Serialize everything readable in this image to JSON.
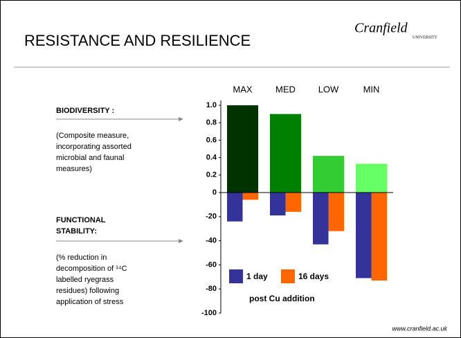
{
  "slide": {
    "title": "RESISTANCE AND RESILIENCE",
    "logo": "Cranfield",
    "logo_sub": "UNIVERSITY",
    "footer": "www.cranfield.ac.uk"
  },
  "left_panel": {
    "biodiversity_heading": "BIODIVERSITY :",
    "biodiversity_text": [
      "(Composite measure,",
      "incorporating assorted",
      "microbial and faunal",
      "measures)"
    ],
    "stability_heading": [
      "FUNCTIONAL",
      "STABILITY:"
    ],
    "stability_text": [
      "(% reduction in",
      "decomposition of ¹⁴C",
      "labelled ryegrass",
      "residues) following",
      "application of stress"
    ]
  },
  "chart_data": [
    {
      "type": "bar",
      "categories": [
        "MAX",
        "MED",
        "LOW",
        "MIN"
      ],
      "values": [
        1.0,
        0.9,
        0.42,
        0.33
      ],
      "colors": [
        "#003300",
        "#008000",
        "#33cc33",
        "#66ff66"
      ],
      "ylim": [
        0,
        1.0
      ],
      "yticks": [
        0,
        0.2,
        0.4,
        0.6,
        0.8,
        {
          "value": 1,
          "label": "1.0"
        }
      ]
    },
    {
      "type": "grouped_bar",
      "series": [
        {
          "name": "1 day",
          "color": "#333399",
          "values": [
            -24,
            -19,
            -43,
            -71
          ]
        },
        {
          "name": "16 days",
          "color": "#ff6600",
          "values": [
            -6,
            -16,
            -32,
            -73
          ]
        }
      ],
      "ylim": [
        -100,
        0
      ],
      "yticks": [
        -100,
        -80,
        -60,
        -40,
        -20
      ],
      "annotation": "post Cu addition"
    }
  ]
}
